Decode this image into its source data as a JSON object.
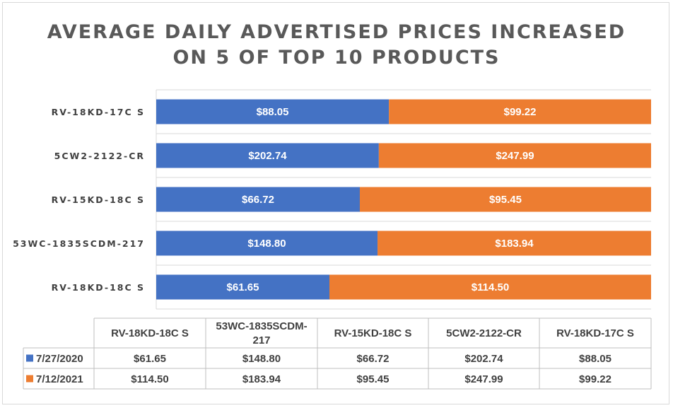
{
  "title_line1": "AVERAGE DAILY ADVERTISED PRICES INCREASED",
  "title_line2": "ON 5 OF TOP 10 PRODUCTS",
  "colors": {
    "series1": "#4472c4",
    "series2": "#ed7d31"
  },
  "chart_data": {
    "type": "bar",
    "orientation": "horizontal",
    "stacking": "percent",
    "title": "AVERAGE DAILY ADVERTISED PRICES INCREASED ON 5 OF TOP 10 PRODUCTS",
    "categories": [
      "RV-18KD-18C S",
      "53WC-1835SCDM-217",
      "RV-15KD-18C S",
      "5CW2-2122-CR",
      "RV-18KD-17C S"
    ],
    "series": [
      {
        "name": "7/27/2020",
        "values": [
          61.65,
          148.8,
          66.72,
          202.74,
          88.05
        ],
        "labels": [
          "$61.65",
          "$148.80",
          "$66.72",
          "$202.74",
          "$88.05"
        ]
      },
      {
        "name": "7/12/2021",
        "values": [
          114.5,
          183.94,
          95.45,
          247.99,
          99.22
        ],
        "labels": [
          "$114.50",
          "$183.94",
          "$95.45",
          "$247.99",
          "$99.22"
        ]
      }
    ],
    "table_headers": [
      "RV-18KD-18C S",
      "53WC-1835SCDM-\n217",
      "RV-15KD-18C S",
      "5CW2-2122-CR",
      "RV-18KD-17C S"
    ],
    "grid": true,
    "legend": "data-table"
  }
}
